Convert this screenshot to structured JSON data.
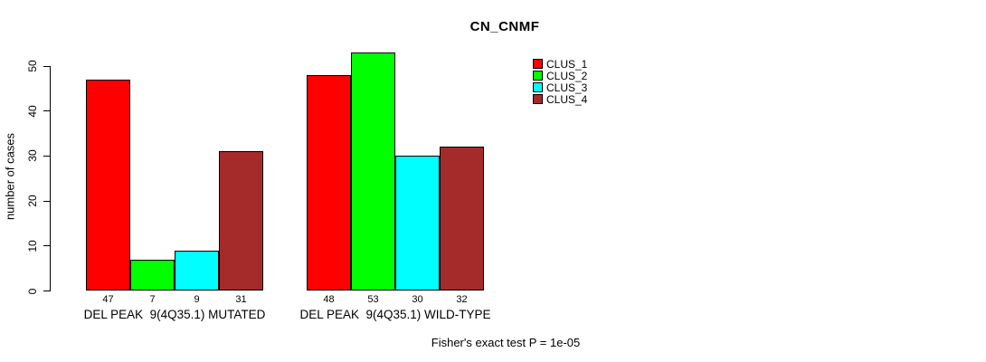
{
  "title": "CN_CNMF",
  "y_axis": {
    "label": "number of cases",
    "ticks": [
      0,
      10,
      20,
      30,
      40,
      50
    ]
  },
  "footer": "Fisher's exact test P = 1e-05",
  "legend": {
    "items": [
      {
        "label": "CLUS_1",
        "color": "#FF0000"
      },
      {
        "label": "CLUS_2",
        "color": "#00FF00"
      },
      {
        "label": "CLUS_3",
        "color": "#00FFFF"
      },
      {
        "label": "CLUS_4",
        "color": "#A52A2A"
      }
    ]
  },
  "chart_data": {
    "type": "bar",
    "title": "CN_CNMF",
    "xlabel": "",
    "ylabel": "number of cases",
    "categories": [
      "DEL PEAK  9(4Q35.1) MUTATED",
      "DEL PEAK  9(4Q35.1) WILD-TYPE"
    ],
    "series": [
      {
        "name": "CLUS_1",
        "color": "#FF0000",
        "values": [
          47,
          48
        ]
      },
      {
        "name": "CLUS_2",
        "color": "#00FF00",
        "values": [
          7,
          53
        ]
      },
      {
        "name": "CLUS_3",
        "color": "#00FFFF",
        "values": [
          9,
          30
        ]
      },
      {
        "name": "CLUS_4",
        "color": "#A52A2A",
        "values": [
          31,
          32
        ]
      }
    ],
    "bar_value_labels": [
      [
        47,
        7,
        9,
        31
      ],
      [
        48,
        53,
        30,
        32
      ]
    ],
    "ylim": [
      0,
      53
    ],
    "yticks": [
      0,
      10,
      20,
      30,
      40,
      50
    ],
    "grid": false,
    "bar_outline_color": "#000000",
    "legend_position": "top-right",
    "legend_entries": [
      "CLUS_1",
      "CLUS_2",
      "CLUS_3",
      "CLUS_4"
    ],
    "annotation": "Fisher's exact test P = 1e-05"
  }
}
